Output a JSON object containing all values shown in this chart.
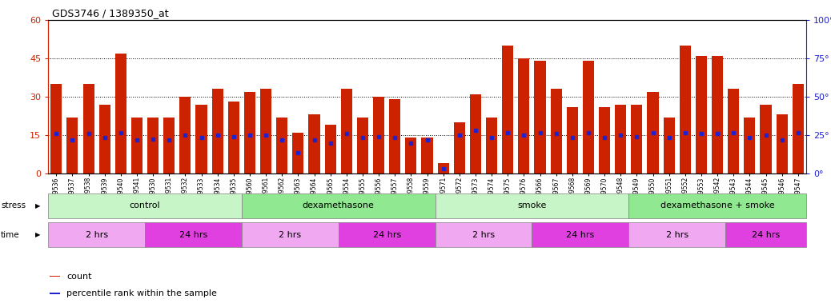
{
  "title": "GDS3746 / 1389350_at",
  "samples": [
    "GSM389536",
    "GSM389537",
    "GSM389538",
    "GSM389539",
    "GSM389540",
    "GSM389541",
    "GSM389530",
    "GSM389531",
    "GSM389532",
    "GSM389533",
    "GSM389534",
    "GSM389535",
    "GSM389560",
    "GSM389561",
    "GSM389562",
    "GSM389563",
    "GSM389564",
    "GSM389565",
    "GSM389554",
    "GSM389555",
    "GSM389556",
    "GSM389557",
    "GSM389558",
    "GSM389559",
    "GSM389571",
    "GSM389572",
    "GSM389573",
    "GSM389574",
    "GSM389575",
    "GSM389576",
    "GSM389566",
    "GSM389567",
    "GSM389568",
    "GSM389569",
    "GSM389570",
    "GSM389548",
    "GSM389549",
    "GSM389550",
    "GSM389551",
    "GSM389552",
    "GSM389553",
    "GSM389542",
    "GSM389543",
    "GSM389544",
    "GSM389545",
    "GSM389546",
    "GSM389547"
  ],
  "counts": [
    35,
    22,
    35,
    27,
    47,
    22,
    22,
    22,
    30,
    27,
    33,
    28,
    32,
    33,
    22,
    16,
    23,
    19,
    33,
    22,
    30,
    29,
    14,
    14,
    4,
    20,
    31,
    22,
    50,
    45,
    44,
    33,
    26,
    44,
    26,
    27,
    27,
    32,
    22,
    50,
    46,
    46,
    33,
    22,
    27,
    23,
    35
  ],
  "percentiles": [
    15.5,
    13.0,
    15.5,
    14.0,
    16.0,
    13.0,
    13.5,
    13.0,
    15.0,
    14.0,
    15.0,
    14.5,
    15.0,
    15.0,
    13.0,
    8.0,
    13.0,
    12.0,
    15.5,
    14.0,
    14.5,
    14.0,
    12.0,
    13.0,
    2.0,
    15.0,
    17.0,
    14.0,
    16.0,
    15.0,
    16.0,
    15.5,
    14.0,
    16.0,
    14.0,
    15.0,
    14.5,
    16.0,
    14.0,
    16.0,
    15.5,
    15.5,
    16.0,
    14.0,
    15.0,
    13.0,
    16.0
  ],
  "ylim_left": [
    0,
    60
  ],
  "ylim_right": [
    0,
    100
  ],
  "yticks_left": [
    0,
    15,
    30,
    45,
    60
  ],
  "yticks_right": [
    0,
    25,
    50,
    75,
    100
  ],
  "bar_color": "#cc2200",
  "dot_color": "#2222cc",
  "stress_groups": [
    {
      "label": "control",
      "start": 0,
      "end": 12,
      "color": "#c8f5c8"
    },
    {
      "label": "dexamethasone",
      "start": 12,
      "end": 24,
      "color": "#90e890"
    },
    {
      "label": "smoke",
      "start": 24,
      "end": 36,
      "color": "#c8f5c8"
    },
    {
      "label": "dexamethasone + smoke",
      "start": 36,
      "end": 47,
      "color": "#90e890"
    }
  ],
  "time_groups": [
    {
      "label": "2 hrs",
      "start": 0,
      "end": 6,
      "color": "#f0a8f0"
    },
    {
      "label": "24 hrs",
      "start": 6,
      "end": 12,
      "color": "#e040e0"
    },
    {
      "label": "2 hrs",
      "start": 12,
      "end": 18,
      "color": "#f0a8f0"
    },
    {
      "label": "24 hrs",
      "start": 18,
      "end": 24,
      "color": "#e040e0"
    },
    {
      "label": "2 hrs",
      "start": 24,
      "end": 30,
      "color": "#f0a8f0"
    },
    {
      "label": "24 hrs",
      "start": 30,
      "end": 36,
      "color": "#e040e0"
    },
    {
      "label": "2 hrs",
      "start": 36,
      "end": 42,
      "color": "#f0a8f0"
    },
    {
      "label": "24 hrs",
      "start": 42,
      "end": 47,
      "color": "#e040e0"
    }
  ]
}
